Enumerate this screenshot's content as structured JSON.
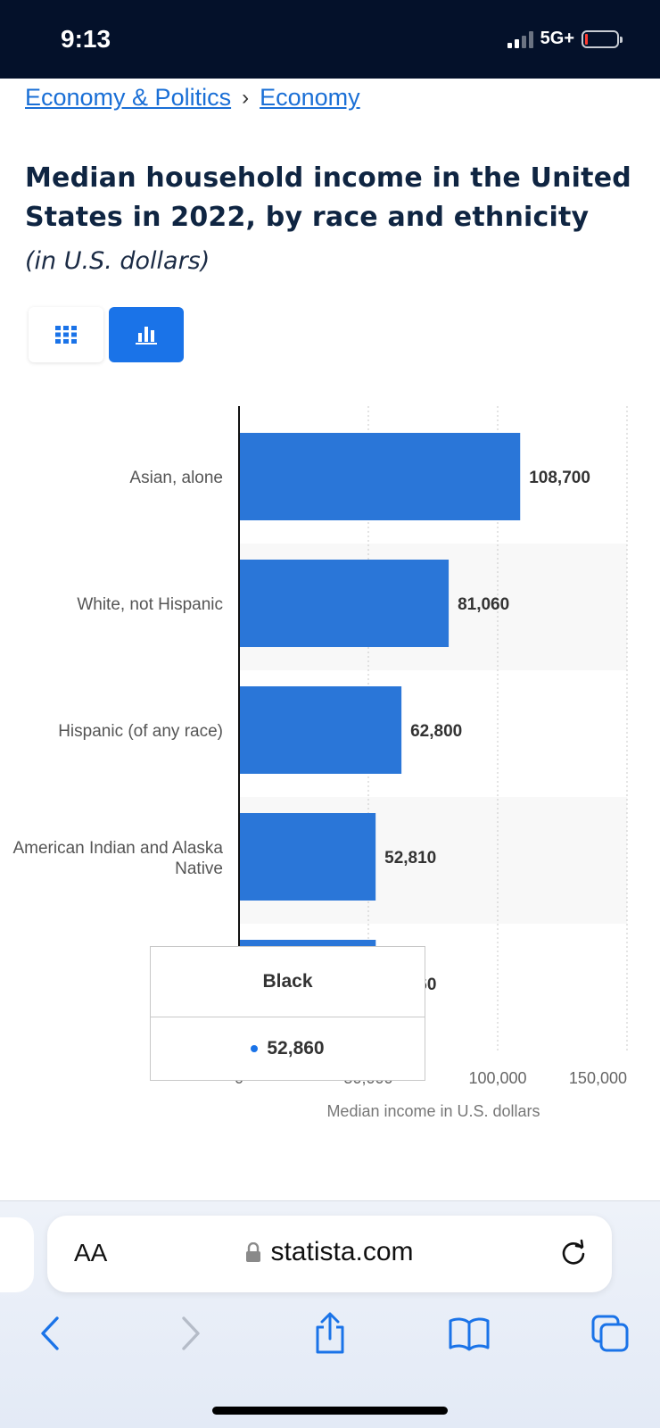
{
  "status_bar": {
    "time": "9:13",
    "network": "5G+"
  },
  "breadcrumb": {
    "items": [
      "Economy & Politics",
      "Economy"
    ],
    "separator": "›"
  },
  "title": "Median household income in the United States in 2022, by race and ethnicity",
  "subtitle": "(in U.S. dollars)",
  "view_toggle": {
    "table_icon": "grid-icon",
    "chart_icon": "bar-chart-icon",
    "active": "chart"
  },
  "chart_data": {
    "type": "bar",
    "orientation": "horizontal",
    "categories": [
      "Asian, alone",
      "White, not Hispanic",
      "Hispanic (of any race)",
      "American Indian and Alaska Native",
      "Black"
    ],
    "values": [
      108700,
      81060,
      62800,
      52810,
      52860
    ],
    "value_labels": [
      "108,700",
      "81,060",
      "62,800",
      "52,810",
      "52,860"
    ],
    "xlabel": "Median income in U.S. dollars",
    "xlim": [
      0,
      150000
    ],
    "x_ticks": [
      0,
      50000,
      100000,
      150000
    ],
    "x_tick_labels": [
      "0",
      "50,000",
      "100,000",
      "150,000"
    ],
    "bar_color": "#2a76d8",
    "grid": true
  },
  "tooltip": {
    "title": "Black",
    "value": "52,860",
    "dot_color": "#1a73e8"
  },
  "browser": {
    "text_size_label": "AA",
    "url": "statista.com",
    "toolbar": [
      "back-icon",
      "forward-icon",
      "share-icon",
      "bookmarks-icon",
      "tabs-icon"
    ]
  }
}
